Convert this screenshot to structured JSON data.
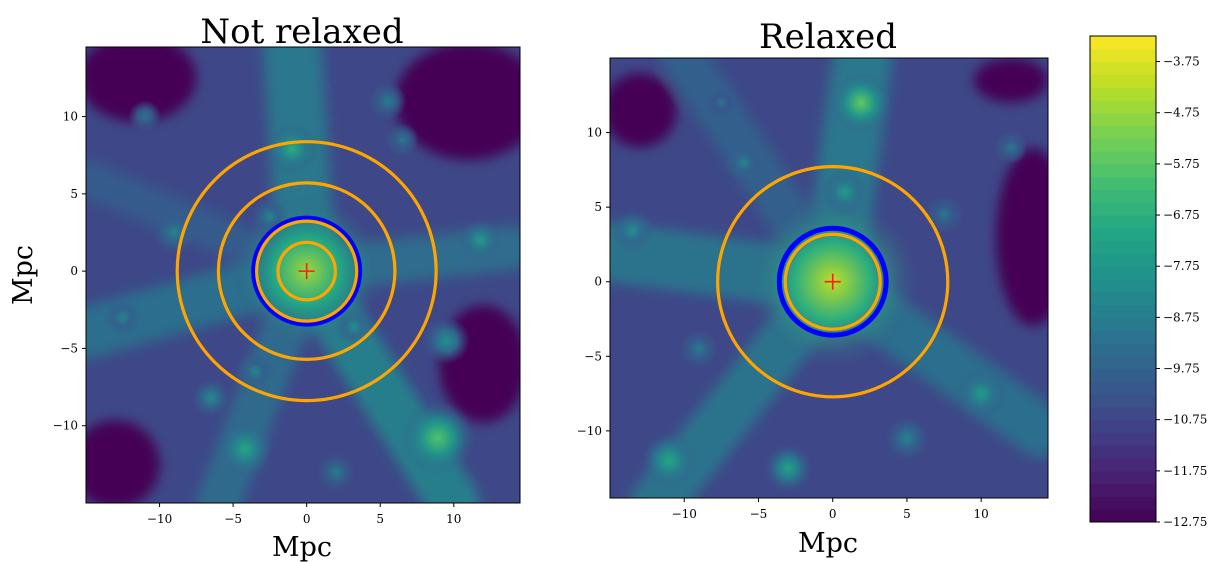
{
  "chart_data": [
    {
      "type": "heatmap",
      "title": "Not relaxed",
      "xlabel": "Mpc",
      "ylabel": "Mpc",
      "xlim": [
        -15,
        14.5
      ],
      "ylim": [
        -15,
        14.5
      ],
      "xticks": [
        -10,
        -5,
        0,
        5,
        10
      ],
      "yticks": [
        -10,
        -5,
        0,
        5,
        10
      ],
      "xtick_labels": [
        "−10",
        "−5",
        "0",
        "5",
        "10"
      ],
      "ytick_labels": [
        "−10",
        "−5",
        "0",
        "5",
        "10"
      ],
      "center_marker": {
        "x": 0,
        "y": 0,
        "symbol": "+",
        "color": "#ff1a1a"
      },
      "circles": [
        {
          "r": 8.8,
          "color": "#ffa500"
        },
        {
          "r": 6.0,
          "color": "#ffa500"
        },
        {
          "r": 3.6,
          "color": "#0000ff"
        },
        {
          "r": 3.4,
          "color": "#ffa500"
        },
        {
          "r": 1.95,
          "color": "#ffa500"
        }
      ],
      "bright_sources": [
        {
          "x": 0,
          "y": 0,
          "level": 0.85,
          "r": 3.2
        },
        {
          "x": 8.9,
          "y": -10.8,
          "level": 0.72,
          "r": 1.6
        },
        {
          "x": -1,
          "y": 7.9,
          "level": 0.62,
          "r": 1.1
        },
        {
          "x": -4.2,
          "y": -11.5,
          "level": 0.6,
          "r": 1.2
        },
        {
          "x": 11.8,
          "y": 2,
          "level": 0.55,
          "r": 0.9
        },
        {
          "x": 9.5,
          "y": -4.5,
          "level": 0.5,
          "r": 1.0
        },
        {
          "x": -6.5,
          "y": -8.2,
          "level": 0.48,
          "r": 0.8
        },
        {
          "x": -12.5,
          "y": -3,
          "level": 0.45,
          "r": 0.8
        },
        {
          "x": 5.5,
          "y": 11,
          "level": 0.42,
          "r": 0.8
        },
        {
          "x": -9,
          "y": 2.5,
          "level": 0.45,
          "r": 0.9
        },
        {
          "x": 3.2,
          "y": -3.6,
          "level": 0.5,
          "r": 0.8
        },
        {
          "x": -2.5,
          "y": 3.5,
          "level": 0.45,
          "r": 0.8
        },
        {
          "x": -3.5,
          "y": -6.5,
          "level": 0.45,
          "r": 0.8
        },
        {
          "x": 6.5,
          "y": 8.5,
          "level": 0.4,
          "r": 0.7
        },
        {
          "x": -11,
          "y": 10,
          "level": 0.38,
          "r": 0.7
        },
        {
          "x": 2,
          "y": -13,
          "level": 0.42,
          "r": 0.8
        }
      ],
      "filaments": [
        {
          "x1": 0,
          "y1": 0,
          "x2": -1,
          "y2": 15,
          "w": 4.0,
          "level": 0.42
        },
        {
          "x1": 0,
          "y1": 0,
          "x2": 10,
          "y2": -15,
          "w": 3.5,
          "level": 0.45
        },
        {
          "x1": 0,
          "y1": 0,
          "x2": -15,
          "y2": -4,
          "w": 3.5,
          "level": 0.38
        },
        {
          "x1": 0,
          "y1": 0,
          "x2": 14,
          "y2": 1.5,
          "w": 3.0,
          "level": 0.37
        },
        {
          "x1": 0,
          "y1": 0,
          "x2": -6,
          "y2": -15,
          "w": 3.0,
          "level": 0.36
        },
        {
          "x1": 0,
          "y1": 0,
          "x2": -15,
          "y2": 6,
          "w": 2.5,
          "level": 0.3
        }
      ],
      "voids": [
        {
          "x": 11,
          "y": 11,
          "rx": 5,
          "ry": 4
        },
        {
          "x": -11.5,
          "y": 12.5,
          "rx": 4,
          "ry": 3
        },
        {
          "x": 12,
          "y": -6,
          "rx": 3,
          "ry": 4
        },
        {
          "x": -13,
          "y": -12.5,
          "rx": 3,
          "ry": 3
        }
      ]
    },
    {
      "type": "heatmap",
      "title": "Relaxed",
      "xlabel": "Mpc",
      "ylabel": "",
      "xlim": [
        -15,
        14.5
      ],
      "ylim": [
        -14.5,
        15
      ],
      "xticks": [
        -10,
        -5,
        0,
        5,
        10
      ],
      "yticks": [
        -10,
        -5,
        0,
        5,
        10
      ],
      "xtick_labels": [
        "−10",
        "−5",
        "0",
        "5",
        "10"
      ],
      "ytick_labels": [
        "−10",
        "−5",
        "0",
        "5",
        "10"
      ],
      "center_marker": {
        "x": 0,
        "y": 0,
        "symbol": "+",
        "color": "#ff1a1a"
      },
      "circles": [
        {
          "r": 7.75,
          "color": "#ffa500"
        },
        {
          "r": 3.6,
          "color": "#0000ff"
        },
        {
          "r": 3.2,
          "color": "#ffa500"
        }
      ],
      "bright_sources": [
        {
          "x": 0,
          "y": 0,
          "level": 0.9,
          "r": 3.6
        },
        {
          "x": 1.9,
          "y": 12,
          "level": 0.75,
          "r": 1.3
        },
        {
          "x": -11,
          "y": -12,
          "level": 0.6,
          "r": 1.2
        },
        {
          "x": -3,
          "y": -12.5,
          "level": 0.58,
          "r": 1.0
        },
        {
          "x": 10,
          "y": -7.5,
          "level": 0.55,
          "r": 1.1
        },
        {
          "x": -13.5,
          "y": 3.4,
          "level": 0.5,
          "r": 0.9
        },
        {
          "x": -6,
          "y": 8,
          "level": 0.45,
          "r": 0.8
        },
        {
          "x": 5,
          "y": -10.5,
          "level": 0.45,
          "r": 0.9
        },
        {
          "x": 12,
          "y": 9,
          "level": 0.4,
          "r": 0.7
        },
        {
          "x": -9,
          "y": -4.5,
          "level": 0.42,
          "r": 0.8
        },
        {
          "x": 7.5,
          "y": 4.5,
          "level": 0.4,
          "r": 0.8
        },
        {
          "x": 0.8,
          "y": 6,
          "level": 0.55,
          "r": 1.0
        },
        {
          "x": -7.5,
          "y": 12,
          "level": 0.38,
          "r": 0.7
        }
      ],
      "filaments": [
        {
          "x1": 0,
          "y1": 0,
          "x2": 2,
          "y2": 15,
          "w": 4.0,
          "level": 0.42
        },
        {
          "x1": 0,
          "y1": 0,
          "x2": -15,
          "y2": 2,
          "w": 4.0,
          "level": 0.4
        },
        {
          "x1": 0,
          "y1": 0,
          "x2": -12,
          "y2": -15,
          "w": 3.5,
          "level": 0.4
        },
        {
          "x1": 0,
          "y1": 0,
          "x2": 14,
          "y2": -10,
          "w": 3.5,
          "level": 0.38
        },
        {
          "x1": 0,
          "y1": 0,
          "x2": -10,
          "y2": 15,
          "w": 3.0,
          "level": 0.32
        }
      ],
      "voids": [
        {
          "x": 13.5,
          "y": 3,
          "rx": 2.5,
          "ry": 6
        },
        {
          "x": -13,
          "y": 11.5,
          "rx": 2.5,
          "ry": 2.5
        },
        {
          "x": 12,
          "y": 13.5,
          "rx": 2.5,
          "ry": 1.5
        }
      ]
    }
  ],
  "colorbar": {
    "min": -12.75,
    "max": -3.25,
    "ticks": [
      -3.75,
      -4.75,
      -5.75,
      -6.75,
      -7.75,
      -8.75,
      -9.75,
      -10.75,
      -11.75,
      -12.75
    ],
    "tick_labels": [
      "−3.75",
      "−4.75",
      "−5.75",
      "−6.75",
      "−7.75",
      "−8.75",
      "−9.75",
      "−10.75",
      "−11.75",
      "−12.75"
    ],
    "colormap": "viridis"
  }
}
